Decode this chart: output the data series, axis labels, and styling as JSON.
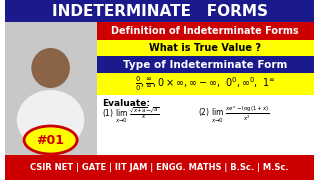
{
  "title": "INDETERMINATE   FORMS",
  "title_bg": "#1a1a8c",
  "title_color": "#ffffff",
  "subtitle1": "Definition of Indeterminate Forms",
  "subtitle1_bg": "#cc0000",
  "subtitle1_color": "#ffffff",
  "line2": "What is True Value ?",
  "line2_bg": "#ffff00",
  "line2_color": "#000000",
  "type_label": "Type of Indeterminate Form",
  "type_bg": "#1a1a8c",
  "type_color": "#ffffff",
  "forms_line": "0/0, ∞/∞, 0×∞, ∞−∞,  0⁰, ∞⁰,  1∞",
  "forms_bg": "#ffff00",
  "forms_color": "#000000",
  "evaluate_label": "Evaluate:",
  "eval_bg": "#ffffff",
  "eval1": "(1) lim   √(x+a) − √a",
  "eval1b": "    x→0        x",
  "eval2": "(2) lim   xeˣ − log(1+x)",
  "eval2b": "    x→0           x²",
  "number_label": "#01",
  "number_bg": "#ffff00",
  "number_color": "#cc0000",
  "bottom_bar": "CSIR NET | GATE | IIT JAM | ENGG. MATHS | B.Sc. | M.Sc.",
  "bottom_bg": "#cc0000",
  "bottom_color": "#ffffff",
  "fig_bg": "#ffffff"
}
